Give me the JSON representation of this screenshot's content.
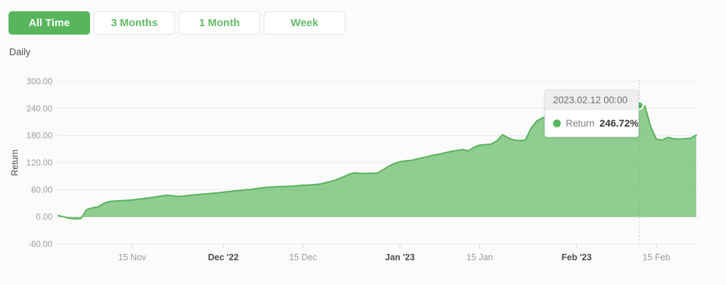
{
  "toolbar": {
    "buttons": [
      {
        "label": "All Time",
        "active": true
      },
      {
        "label": "3 Months",
        "active": false
      },
      {
        "label": "1 Month",
        "active": false
      },
      {
        "label": "Week",
        "active": false
      }
    ]
  },
  "frequency_label": "Daily",
  "tooltip": {
    "date": "2023.02.12 00:00",
    "series": "Return",
    "value": "246.72%"
  },
  "colors": {
    "accent_green": "#57b65b",
    "line": "#58b25b",
    "fill": "rgba(86,180,88,0.66)",
    "grid": "#e8e8e8",
    "tick": "#d4d4d4",
    "dashed_line": "#c9c9c9",
    "axis_text": "#9a9a9a",
    "axis_text_bold": "#4c4c4c",
    "marker_fill": "#56b458"
  },
  "chart_data": {
    "type": "area",
    "title": "",
    "xlabel": "",
    "ylabel": "Return",
    "x_unit": "day",
    "grid": true,
    "ylim": [
      -60,
      300
    ],
    "y_ticks": [
      {
        "value": 300,
        "label": "300.00"
      },
      {
        "value": 240,
        "label": "240.00"
      },
      {
        "value": 180,
        "label": "180.00"
      },
      {
        "value": 120,
        "label": "120.00"
      },
      {
        "value": 60,
        "label": "60.00"
      },
      {
        "value": 0,
        "label": "0.00"
      },
      {
        "value": -60,
        "label": "-60.00"
      }
    ],
    "x_ticks": [
      {
        "index": 13,
        "label": "15 Nov",
        "bold": false
      },
      {
        "index": 29,
        "label": "Dec '22",
        "bold": true
      },
      {
        "index": 43,
        "label": "15 Dec",
        "bold": false
      },
      {
        "index": 60,
        "label": "Jan '23",
        "bold": true
      },
      {
        "index": 74,
        "label": "15 Jan",
        "bold": false
      },
      {
        "index": 91,
        "label": "Feb '23",
        "bold": true
      },
      {
        "index": 105,
        "label": "15 Feb",
        "bold": false
      }
    ],
    "highlight": {
      "index": 102,
      "value": 246.72,
      "date": "2023.02.12 00:00",
      "display_value": "246.72%"
    },
    "series": [
      {
        "name": "Return",
        "values": [
          3,
          0,
          -3,
          -4.5,
          -4,
          16,
          20,
          22,
          30,
          34,
          35,
          36,
          36.5,
          37.5,
          39,
          40.5,
          42,
          44,
          46,
          48,
          47,
          45,
          46,
          47.5,
          49,
          50,
          51,
          52,
          53,
          54.5,
          56,
          57.5,
          58.5,
          60,
          61,
          63,
          64.5,
          66,
          66.5,
          67,
          67.5,
          68,
          69,
          70,
          70.5,
          71.5,
          72.5,
          76,
          79,
          83,
          88,
          94,
          97.5,
          96,
          96,
          96.5,
          96.5,
          104,
          112,
          118,
          122,
          124,
          125,
          128,
          131,
          134,
          137,
          139,
          142,
          145,
          147,
          149,
          146,
          154,
          159,
          160,
          161,
          168,
          182,
          175,
          170,
          169,
          170,
          196,
          212,
          219,
          223,
          226,
          228,
          229,
          228,
          230,
          232,
          231,
          233,
          235,
          234,
          236,
          238,
          240,
          242,
          244,
          246.72,
          245,
          200,
          172,
          170,
          176,
          173,
          172,
          173,
          174,
          181
        ]
      }
    ]
  }
}
